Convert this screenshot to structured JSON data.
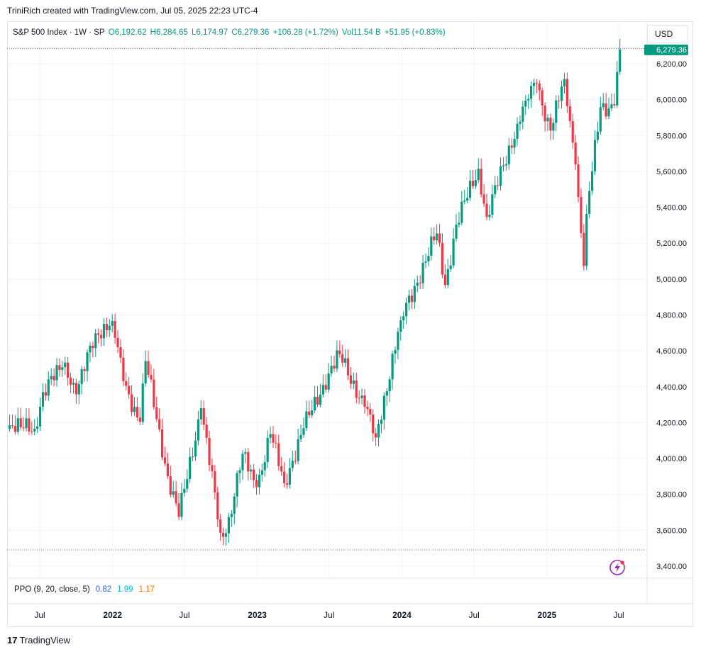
{
  "header": {
    "caption": "TriniRich created with TradingView.com, Jul 05, 2025 22:23 UTC-4",
    "currency_button": "USD"
  },
  "legend": {
    "symbol": "S&P 500 Index · 1W · SP",
    "open": "O6,192.62",
    "high": "H6,284.65",
    "low": "L6,174.97",
    "close": "C6,279.36",
    "change": "+106.28 (+1.72%)",
    "volume": "Vol11.54 B",
    "volume_change": "+51.95 (+0.83%)"
  },
  "indicator": {
    "label": "PPO (9, 20, close, 5)",
    "value1": "0.82",
    "value2": "1.99",
    "value3": "1.17"
  },
  "footer": {
    "brand_mark": "17",
    "brand": "TradingView"
  },
  "colors": {
    "up": "#089981",
    "down": "#f23645",
    "grid": "#f0f3fa",
    "text": "#131722",
    "price_tag": "#089981",
    "flash_icon": "#9c27b0"
  },
  "icons": [
    "flash-icon",
    "tradingview-logo-icon"
  ],
  "chart_data": {
    "type": "candlestick",
    "title": "S&P 500 Index · 1W · SP",
    "ylim": [
      3320,
      6330
    ],
    "y_ticks": [
      3400,
      3600,
      3800,
      4000,
      4200,
      4400,
      4600,
      4800,
      5000,
      5200,
      5400,
      5600,
      5800,
      6000,
      6200
    ],
    "y_tick_labels": [
      "3,400.00",
      "3,600.00",
      "3,800.00",
      "4,000.00",
      "4,200.00",
      "4,400.00",
      "4,600.00",
      "4,800.00",
      "5,000.00",
      "5,200.00",
      "5,400.00",
      "5,600.00",
      "5,800.00",
      "6,000.00",
      "6,200.00"
    ],
    "x_ticks": [
      "Jul",
      "2022",
      "Jul",
      "2023",
      "Jul",
      "2024",
      "Jul",
      "2025",
      "Jul"
    ],
    "x_tick_dates": [
      "2021-07-01",
      "2022-01-01",
      "2022-07-01",
      "2023-01-01",
      "2023-07-01",
      "2024-01-01",
      "2024-07-01",
      "2025-01-01",
      "2025-07-01"
    ],
    "last_price_label": "6,279.36",
    "last_price": 6279.36,
    "high_marker": 6284.65,
    "low_marker": 3491,
    "anchors": [
      {
        "date": "2021-04-16",
        "close": 4185
      },
      {
        "date": "2021-05-14",
        "close": 4173
      },
      {
        "date": "2021-06-18",
        "close": 4166
      },
      {
        "date": "2021-07-09",
        "close": 4370
      },
      {
        "date": "2021-08-27",
        "close": 4509
      },
      {
        "date": "2021-09-03",
        "close": 4535
      },
      {
        "date": "2021-10-01",
        "close": 4357
      },
      {
        "date": "2021-11-19",
        "close": 4698
      },
      {
        "date": "2021-12-31",
        "close": 4766
      },
      {
        "date": "2022-01-28",
        "close": 4431
      },
      {
        "date": "2022-03-11",
        "close": 4204
      },
      {
        "date": "2022-03-25",
        "close": 4543
      },
      {
        "date": "2022-05-20",
        "close": 3901
      },
      {
        "date": "2022-06-17",
        "close": 3675
      },
      {
        "date": "2022-08-12",
        "close": 4280
      },
      {
        "date": "2022-09-30",
        "close": 3586
      },
      {
        "date": "2022-10-14",
        "close": 3583
      },
      {
        "date": "2022-11-25",
        "close": 4026
      },
      {
        "date": "2022-12-30",
        "close": 3840
      },
      {
        "date": "2023-02-03",
        "close": 4136
      },
      {
        "date": "2023-03-10",
        "close": 3862
      },
      {
        "date": "2023-04-28",
        "close": 4169
      },
      {
        "date": "2023-06-16",
        "close": 4410
      },
      {
        "date": "2023-07-28",
        "close": 4582
      },
      {
        "date": "2023-09-29",
        "close": 4288
      },
      {
        "date": "2023-10-27",
        "close": 4117
      },
      {
        "date": "2023-12-29",
        "close": 4770
      },
      {
        "date": "2024-03-29",
        "close": 5254
      },
      {
        "date": "2024-04-19",
        "close": 4967
      },
      {
        "date": "2024-05-17",
        "close": 5303
      },
      {
        "date": "2024-07-12",
        "close": 5615
      },
      {
        "date": "2024-08-02",
        "close": 5346
      },
      {
        "date": "2024-10-18",
        "close": 5865
      },
      {
        "date": "2024-11-08",
        "close": 5995
      },
      {
        "date": "2024-12-06",
        "close": 6090
      },
      {
        "date": "2025-01-10",
        "close": 5827
      },
      {
        "date": "2025-02-14",
        "close": 6115
      },
      {
        "date": "2025-03-14",
        "close": 5639
      },
      {
        "date": "2025-04-04",
        "close": 5074
      },
      {
        "date": "2025-04-11",
        "close": 5363
      },
      {
        "date": "2025-05-16",
        "close": 5958
      },
      {
        "date": "2025-06-20",
        "close": 5968
      },
      {
        "date": "2025-07-04",
        "close": 6279
      }
    ]
  }
}
